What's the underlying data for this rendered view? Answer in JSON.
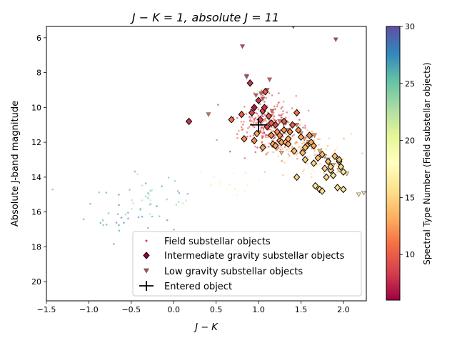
{
  "chart_data": {
    "type": "scatter",
    "title_parts": [
      "J − K = 1,",
      "absolute J = 11"
    ],
    "xlabel": "J − K",
    "ylabel": "Absolute  J-band magnitude",
    "xlim": [
      -1.5,
      2.27
    ],
    "ylim": [
      21.1,
      5.35
    ],
    "y_inverted": true,
    "x_ticks": [
      -1.5,
      -1.0,
      -0.5,
      0.0,
      0.5,
      1.0,
      1.5,
      2.0
    ],
    "x_tick_labels": [
      "−1.5",
      "−1.0",
      "−0.5",
      "0.0",
      "0.5",
      "1.0",
      "1.5",
      "2.0"
    ],
    "y_ticks": [
      6,
      8,
      10,
      12,
      14,
      16,
      18,
      20
    ],
    "y_tick_labels": [
      "6",
      "8",
      "10",
      "12",
      "14",
      "16",
      "18",
      "20"
    ],
    "colorbar": {
      "label": "Spectral Type Number (Field substellar objects)",
      "range": [
        6,
        30
      ],
      "ticks": [
        10,
        15,
        20,
        25,
        30
      ],
      "tick_labels": [
        "10",
        "15",
        "20",
        "25",
        "30"
      ],
      "colormap": "Spectral"
    },
    "legend": {
      "position": "lower-right",
      "entries": [
        {
          "label": "Field substellar objects",
          "marker": "dot",
          "color": "#c23b4b"
        },
        {
          "label": "Intermediate gravity substellar objects",
          "marker": "diamond",
          "color": "#9e0142"
        },
        {
          "label": "Low gravity substellar objects",
          "marker": "triangle-down",
          "color": "#b04b4b"
        },
        {
          "label": "Entered object",
          "marker": "errorbar",
          "color": "#000000"
        }
      ]
    },
    "field_clusters": [
      {
        "cx": 1.1,
        "cy": 11.0,
        "sx": 0.17,
        "sy": 0.75,
        "n": 230,
        "spt": [
          7,
          11
        ]
      },
      {
        "cx": 1.35,
        "cy": 12.0,
        "sx": 0.2,
        "sy": 0.55,
        "n": 90,
        "spt": [
          11,
          14
        ]
      },
      {
        "cx": 1.7,
        "cy": 13.1,
        "sx": 0.22,
        "sy": 0.6,
        "n": 60,
        "spt": [
          13,
          17
        ]
      },
      {
        "cx": 0.6,
        "cy": 14.3,
        "sx": 0.25,
        "sy": 0.3,
        "n": 18,
        "spt": [
          18,
          21
        ]
      },
      {
        "cx": -0.3,
        "cy": 15.3,
        "sx": 0.28,
        "sy": 0.7,
        "n": 40,
        "spt": [
          22,
          27
        ]
      },
      {
        "cx": -0.7,
        "cy": 16.6,
        "sx": 0.3,
        "sy": 0.9,
        "n": 25,
        "spt": [
          26,
          29
        ]
      }
    ],
    "intermediate_gravity": {
      "x": [
        0.18,
        0.68,
        0.8,
        0.83,
        0.9,
        0.92,
        0.95,
        0.98,
        1.0,
        1.02,
        1.05,
        1.07,
        1.08,
        1.1,
        1.12,
        1.15,
        1.17,
        1.2,
        1.22,
        1.25,
        1.27,
        1.3,
        1.32,
        1.35,
        1.37,
        1.4,
        1.42,
        1.45,
        1.47,
        1.5,
        1.52,
        1.55,
        1.57,
        1.6,
        1.62,
        1.65,
        1.67,
        1.7,
        1.72,
        1.75,
        1.78,
        1.8,
        1.82,
        1.85,
        1.88,
        1.9,
        1.93,
        1.95,
        1.97,
        2.0,
        1.45,
        1.3,
        1.2,
        0.95,
        1.05,
        1.15,
        1.25,
        1.35,
        1.55,
        1.65,
        1.75,
        1.85,
        1.95,
        2.0,
        1.85
      ],
      "y": [
        10.8,
        10.7,
        10.4,
        11.8,
        8.6,
        10.3,
        10.0,
        11.5,
        9.6,
        10.7,
        10.2,
        10.0,
        9.1,
        11.1,
        10.5,
        11.6,
        12.1,
        11.0,
        11.4,
        11.9,
        12.0,
        10.8,
        12.0,
        12.1,
        11.4,
        11.0,
        12.5,
        14.0,
        11.3,
        11.7,
        12.6,
        13.0,
        12.2,
        11.6,
        12.0,
        13.2,
        14.5,
        12.9,
        14.7,
        14.8,
        13.5,
        14.0,
        13.1,
        13.6,
        13.9,
        12.8,
        14.6,
        13.1,
        13.4,
        13.7,
        10.3,
        11.3,
        12.2,
        11.9,
        12.3,
        10.9,
        11.6,
        11.8,
        12.3,
        12.2,
        12.7,
        13.6,
        13.0,
        14.7,
        13.4
      ],
      "spt": [
        8,
        11,
        10,
        12,
        8,
        9,
        7,
        13,
        8,
        9,
        9,
        8,
        10,
        9,
        10,
        12,
        13,
        9,
        12,
        13,
        13,
        10,
        13,
        13,
        12,
        10,
        14,
        15,
        12,
        13,
        14,
        15,
        13,
        12,
        13,
        15,
        16,
        14,
        16,
        16,
        15,
        15,
        14,
        15,
        16,
        14,
        16,
        15,
        15,
        16,
        11,
        12,
        13,
        12,
        13,
        10,
        12,
        13,
        14,
        13,
        14,
        15,
        14,
        16,
        15
      ]
    },
    "low_gravity": {
      "x": [
        0.41,
        0.81,
        0.86,
        0.86,
        0.97,
        1.03,
        1.1,
        1.13,
        1.16,
        1.05,
        1.25,
        1.32,
        1.45,
        1.5,
        1.54,
        1.59,
        1.66,
        1.72,
        1.78,
        1.88,
        1.91,
        1.95,
        2.04,
        2.18,
        2.24,
        1.41,
        1.27,
        1.35,
        1.63,
        1.82
      ],
      "y": [
        10.4,
        6.5,
        8.25,
        8.2,
        9.3,
        9.2,
        9.0,
        8.4,
        10.2,
        9.5,
        10.8,
        10.9,
        11.0,
        11.5,
        11.8,
        12.0,
        11.6,
        12.5,
        12.8,
        13.3,
        6.1,
        13.6,
        13.8,
        15.0,
        14.9,
        5.35,
        12.6,
        11.3,
        11.6,
        13.0
      ],
      "spt": [
        10,
        8,
        8,
        8,
        9,
        9,
        9,
        9,
        10,
        9,
        11,
        11,
        11,
        12,
        12,
        13,
        12,
        13,
        14,
        14,
        8,
        15,
        15,
        16,
        16,
        7,
        13,
        12,
        13,
        14
      ]
    },
    "entered_object": {
      "x": 1.0,
      "y": 11.0,
      "xerr": 0.1,
      "yerr": 0.4
    }
  }
}
